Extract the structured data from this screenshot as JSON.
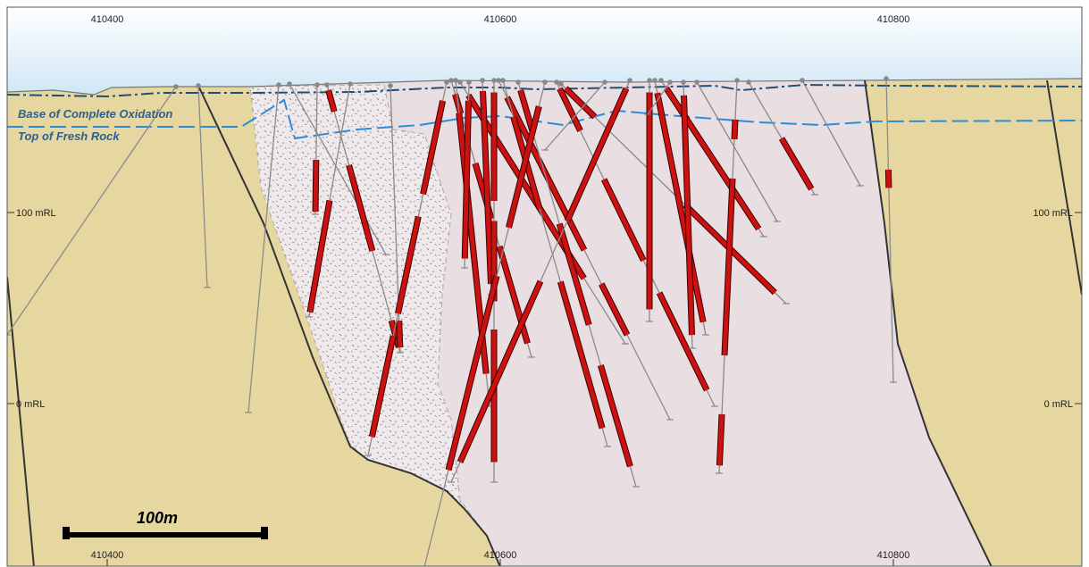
{
  "section": {
    "easting_labels": [
      "410400",
      "410600",
      "410800"
    ],
    "rl_labels": [
      "100 mRL",
      "0 mRL"
    ],
    "horizons": [
      {
        "name": "Base of Complete Oxidation",
        "color": "#1f4e79"
      },
      {
        "name": "Top of Fresh Rock",
        "color": "#2e8bd8"
      }
    ],
    "scale_bar": {
      "label": "100m"
    },
    "colors": {
      "sky": "#cfe6f5",
      "host_rock": "#e6d7a0",
      "intrusion": "#e9dfe2",
      "stipple_zone": "#efe9ec",
      "fault": "#333333",
      "drill_trace": "#8a8a8a",
      "mineral_intercept": "#cc1111",
      "frame": "#555555"
    }
  }
}
